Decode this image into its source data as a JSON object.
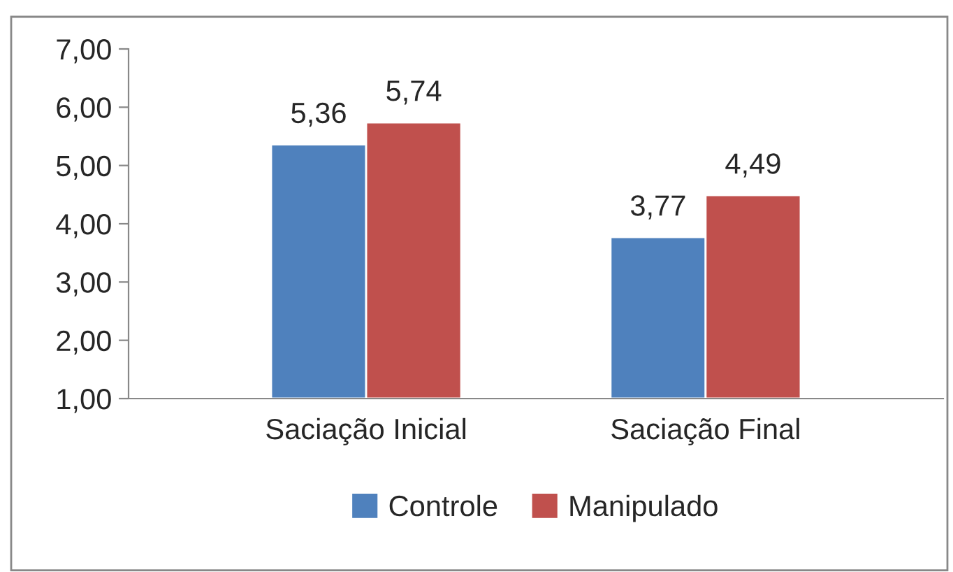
{
  "chart_data": {
    "type": "bar",
    "categories": [
      "Saciação Inicial",
      "Saciação Final"
    ],
    "series": [
      {
        "name": "Controle",
        "color": "#4f81bd",
        "values": [
          5.36,
          3.77
        ],
        "value_labels": [
          "5,36",
          "3,77"
        ]
      },
      {
        "name": "Manipulado",
        "color": "#c0504d",
        "values": [
          5.74,
          4.49
        ],
        "value_labels": [
          "5,74",
          "4,49"
        ]
      }
    ],
    "ylim": [
      1,
      7
    ],
    "yticks": [
      {
        "value": 1,
        "label": "1,00"
      },
      {
        "value": 2,
        "label": "2,00"
      },
      {
        "value": 3,
        "label": "3,00"
      },
      {
        "value": 4,
        "label": "4,00"
      },
      {
        "value": 5,
        "label": "5,00"
      },
      {
        "value": 6,
        "label": "6,00"
      },
      {
        "value": 7,
        "label": "7,00"
      }
    ],
    "grid": false,
    "legend": "bottom"
  }
}
